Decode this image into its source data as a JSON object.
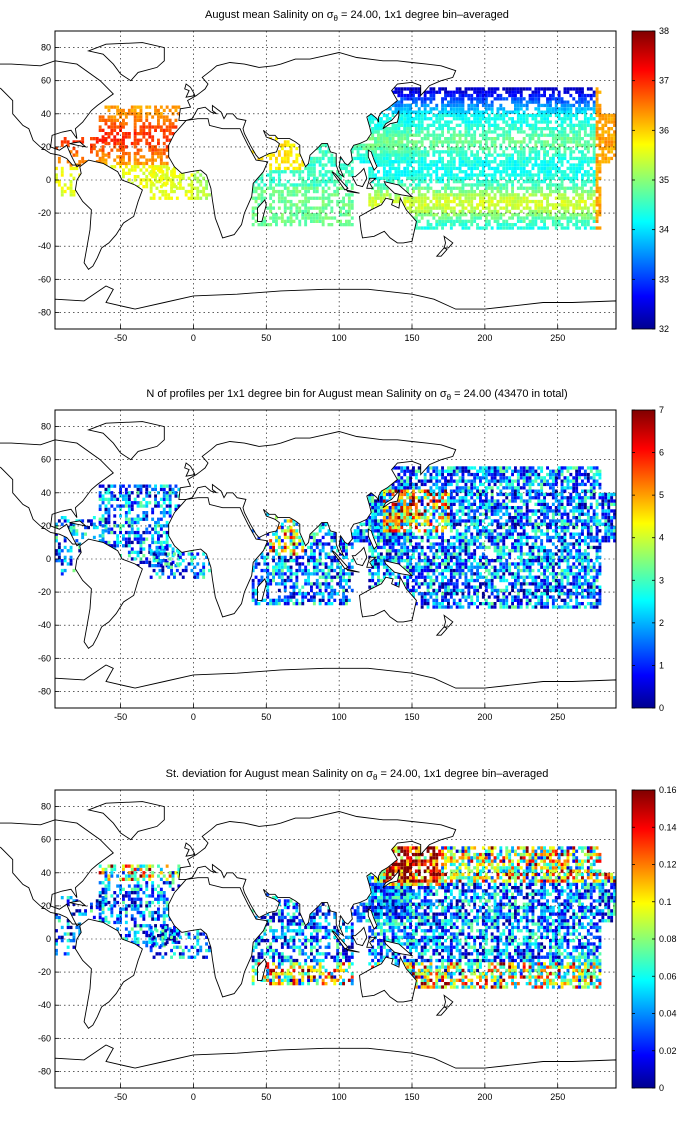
{
  "figure": {
    "x_ticks": [
      -50,
      0,
      50,
      100,
      150,
      200,
      250
    ],
    "y_ticks": [
      80,
      60,
      40,
      20,
      0,
      -20,
      -40,
      -60,
      -80
    ],
    "xlim": [
      -95,
      290
    ],
    "ylim": [
      -90,
      90
    ],
    "colormap": "jet",
    "colormap_stops": [
      "#00008f",
      "#0000ff",
      "#00ffff",
      "#ffff00",
      "#ff0000",
      "#800000"
    ]
  },
  "panels": [
    {
      "title_prefix": "August mean Salinity on ",
      "title_symbol": "σ",
      "title_subscript": "θ",
      "title_suffix": " = 24.00, 1x1 degree bin–averaged",
      "colorbar": {
        "min": 32,
        "max": 38,
        "ticks": [
          "38",
          "37",
          "36",
          "35",
          "34",
          "33",
          "32"
        ]
      },
      "field": "salinity"
    },
    {
      "title_prefix": "N of profiles per 1x1 degree bin for August mean Salinity on ",
      "title_symbol": "σ",
      "title_subscript": "θ",
      "title_suffix": " = 24.00 (43470 in total)",
      "colorbar": {
        "min": 0,
        "max": 7,
        "ticks": [
          "7",
          "6",
          "5",
          "4",
          "3",
          "2",
          "1",
          "0"
        ]
      },
      "field": "count"
    },
    {
      "title_prefix": "St. deviation for August mean Salinity on ",
      "title_symbol": "σ",
      "title_subscript": "θ",
      "title_suffix": " = 24.00, 1x1 degree bin–averaged",
      "colorbar": {
        "min": 0,
        "max": 0.16,
        "ticks": [
          "0.16",
          "0.14",
          "0.12",
          "0.1",
          "0.08",
          "0.06",
          "0.04",
          "0.02",
          "0"
        ]
      },
      "field": "stdev"
    }
  ]
}
